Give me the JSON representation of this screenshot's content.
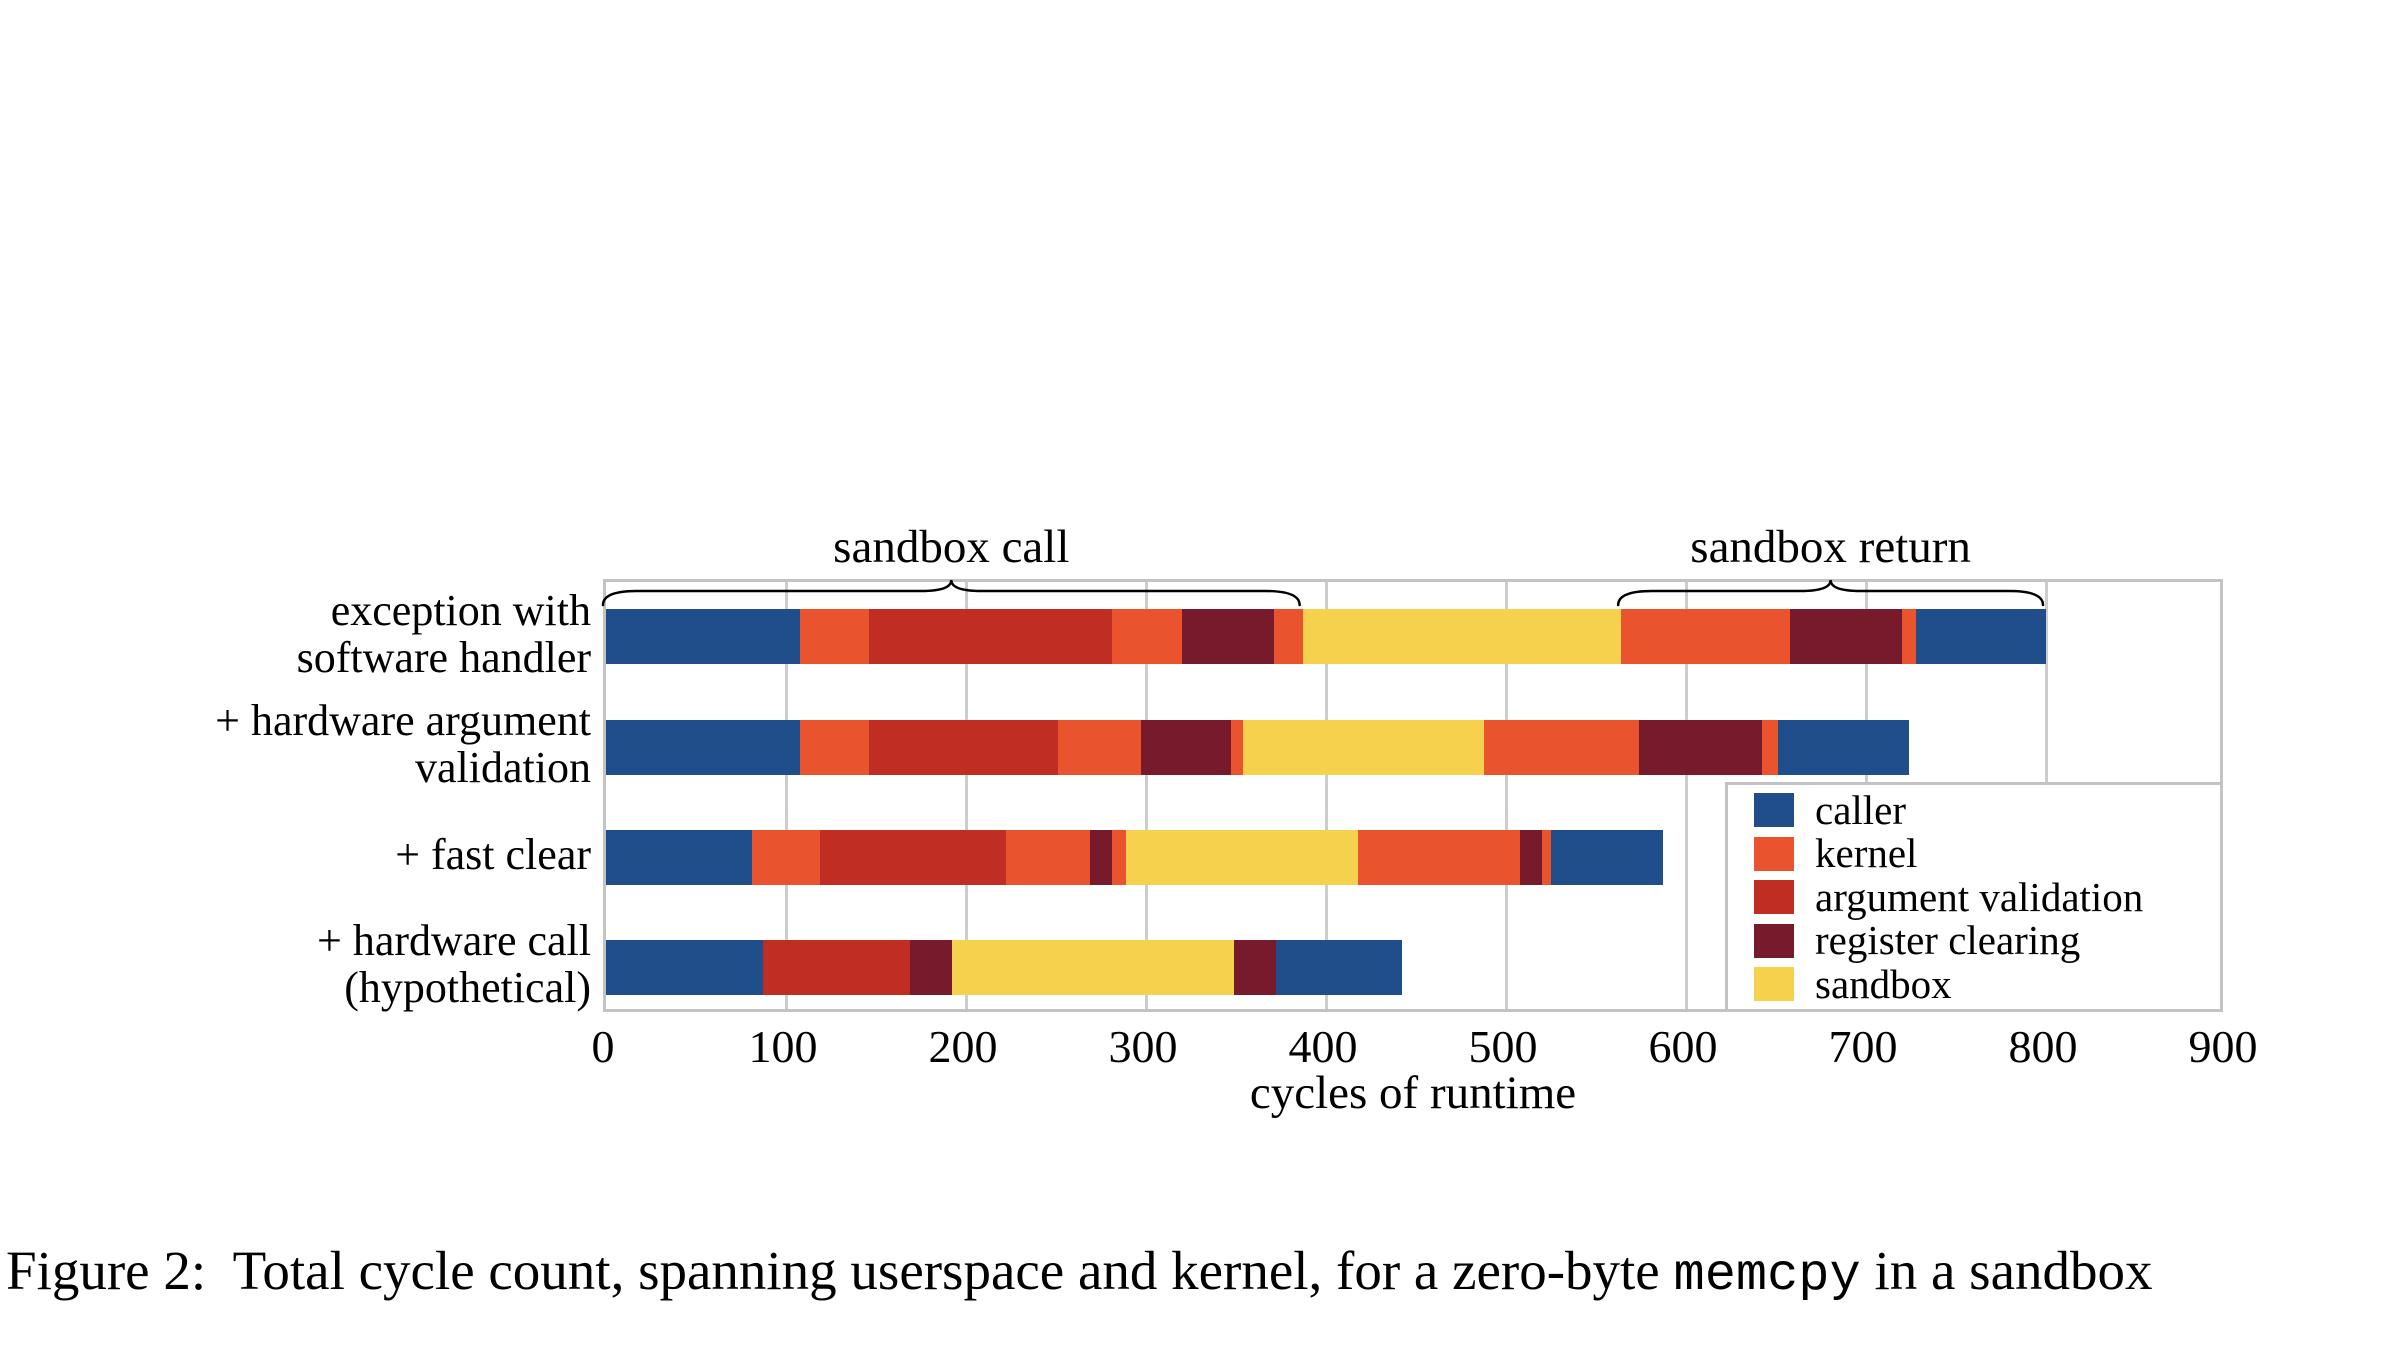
{
  "figure": {
    "caption_prefix": "Figure 2:",
    "caption_body": "  Total cycle count, spanning userspace and kernel, for a zero-byte ",
    "caption_code": "memcpy",
    "caption_suffix": " in a sandbox"
  },
  "chart_data": {
    "type": "bar",
    "orientation": "horizontal",
    "xlabel": "cycles of runtime",
    "xlim": [
      0,
      900
    ],
    "xticks": [
      0,
      100,
      200,
      300,
      400,
      500,
      600,
      700,
      800,
      900
    ],
    "grid": "vertical",
    "legend_position": "lower right",
    "colors": {
      "caller": "#1f4e8b",
      "kernel": "#e9532e",
      "argument_validation": "#c02d22",
      "register_clearing": "#771a2c",
      "sandbox": "#f6d14e",
      "frame": "#c3c3c3",
      "gridline": "#cdcdcd",
      "brace": "#000000"
    },
    "legend_entries": [
      {
        "key": "caller",
        "label": "caller"
      },
      {
        "key": "kernel",
        "label": "kernel"
      },
      {
        "key": "argument_validation",
        "label": "argument validation"
      },
      {
        "key": "register_clearing",
        "label": "register clearing"
      },
      {
        "key": "sandbox",
        "label": "sandbox"
      }
    ],
    "annotations": [
      {
        "label": "sandbox call",
        "span_cycles": [
          0,
          387
        ],
        "row": 0
      },
      {
        "label": "sandbox return",
        "span_cycles": [
          564,
          800
        ],
        "row": 0
      }
    ],
    "rows": [
      {
        "label_lines": [
          "exception with",
          "software handler"
        ],
        "total_cycles": 800,
        "segments": [
          {
            "key": "caller",
            "start": 0,
            "end": 108
          },
          {
            "key": "kernel",
            "start": 108,
            "end": 146
          },
          {
            "key": "argument_validation",
            "start": 146,
            "end": 281
          },
          {
            "key": "kernel",
            "start": 281,
            "end": 320
          },
          {
            "key": "register_clearing",
            "start": 320,
            "end": 371
          },
          {
            "key": "kernel",
            "start": 371,
            "end": 387
          },
          {
            "key": "sandbox",
            "start": 387,
            "end": 564
          },
          {
            "key": "kernel",
            "start": 564,
            "end": 658
          },
          {
            "key": "register_clearing",
            "start": 658,
            "end": 720
          },
          {
            "key": "kernel",
            "start": 720,
            "end": 728
          },
          {
            "key": "caller",
            "start": 728,
            "end": 800
          }
        ]
      },
      {
        "label_lines": [
          "+ hardware argument",
          "validation"
        ],
        "total_cycles": 724,
        "segments": [
          {
            "key": "caller",
            "start": 0,
            "end": 108
          },
          {
            "key": "kernel",
            "start": 108,
            "end": 146
          },
          {
            "key": "argument_validation",
            "start": 146,
            "end": 251
          },
          {
            "key": "kernel",
            "start": 251,
            "end": 297
          },
          {
            "key": "register_clearing",
            "start": 297,
            "end": 347
          },
          {
            "key": "kernel",
            "start": 347,
            "end": 354
          },
          {
            "key": "sandbox",
            "start": 354,
            "end": 488
          },
          {
            "key": "kernel",
            "start": 488,
            "end": 574
          },
          {
            "key": "register_clearing",
            "start": 574,
            "end": 642
          },
          {
            "key": "kernel",
            "start": 642,
            "end": 651
          },
          {
            "key": "caller",
            "start": 651,
            "end": 724
          }
        ]
      },
      {
        "label_lines": [
          "+ fast clear"
        ],
        "total_cycles": 587,
        "segments": [
          {
            "key": "caller",
            "start": 0,
            "end": 81
          },
          {
            "key": "kernel",
            "start": 81,
            "end": 119
          },
          {
            "key": "argument_validation",
            "start": 119,
            "end": 222
          },
          {
            "key": "kernel",
            "start": 222,
            "end": 269
          },
          {
            "key": "register_clearing",
            "start": 269,
            "end": 281
          },
          {
            "key": "kernel",
            "start": 281,
            "end": 289
          },
          {
            "key": "sandbox",
            "start": 289,
            "end": 418
          },
          {
            "key": "kernel",
            "start": 418,
            "end": 508
          },
          {
            "key": "register_clearing",
            "start": 508,
            "end": 520
          },
          {
            "key": "kernel",
            "start": 520,
            "end": 525
          },
          {
            "key": "caller",
            "start": 525,
            "end": 587
          }
        ]
      },
      {
        "label_lines": [
          "+ hardware call",
          "(hypothetical)"
        ],
        "total_cycles": 442,
        "segments": [
          {
            "key": "caller",
            "start": 0,
            "end": 87
          },
          {
            "key": "argument_validation",
            "start": 87,
            "end": 169
          },
          {
            "key": "register_clearing",
            "start": 169,
            "end": 192
          },
          {
            "key": "sandbox",
            "start": 192,
            "end": 349
          },
          {
            "key": "register_clearing",
            "start": 349,
            "end": 372
          },
          {
            "key": "caller",
            "start": 372,
            "end": 442
          }
        ]
      }
    ]
  }
}
